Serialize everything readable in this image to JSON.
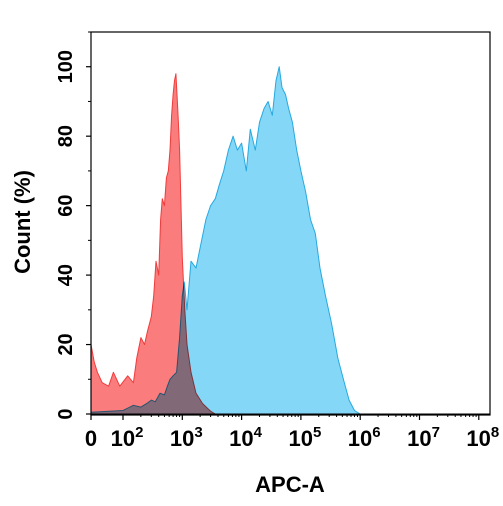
{
  "chart_data": {
    "type": "area",
    "title": "",
    "xlabel": "APC-A",
    "ylabel": "Count (%)",
    "x_scale": "biexponential",
    "xlim": [
      0,
      100000000
    ],
    "ylim": [
      0,
      110
    ],
    "y_ticks": [
      "0",
      "20",
      "40",
      "60",
      "80",
      "100"
    ],
    "x_ticks": [
      {
        "base": "0",
        "exp": ""
      },
      {
        "base": "10",
        "exp": "2"
      },
      {
        "base": "10",
        "exp": "3"
      },
      {
        "base": "10",
        "exp": "4"
      },
      {
        "base": "10",
        "exp": "5"
      },
      {
        "base": "10",
        "exp": "6"
      },
      {
        "base": "10",
        "exp": "7"
      },
      {
        "base": "10",
        "exp": "8"
      }
    ],
    "grid": false,
    "legend": "none",
    "series": [
      {
        "color": "#f03c3c",
        "fill": "#fa6e6e",
        "points": [
          [
            0,
            20
          ],
          [
            10,
            15
          ],
          [
            20,
            12
          ],
          [
            35,
            9
          ],
          [
            55,
            8
          ],
          [
            70,
            12
          ],
          [
            90,
            8
          ],
          [
            120,
            11
          ],
          [
            150,
            9
          ],
          [
            170,
            16
          ],
          [
            200,
            22
          ],
          [
            230,
            20
          ],
          [
            260,
            24
          ],
          [
            300,
            28
          ],
          [
            330,
            34
          ],
          [
            360,
            44
          ],
          [
            400,
            40
          ],
          [
            430,
            56
          ],
          [
            460,
            62
          ],
          [
            500,
            60
          ],
          [
            540,
            68
          ],
          [
            580,
            70
          ],
          [
            620,
            76
          ],
          [
            660,
            86
          ],
          [
            700,
            92
          ],
          [
            740,
            96
          ],
          [
            780,
            98
          ],
          [
            820,
            91
          ],
          [
            860,
            84
          ],
          [
            900,
            76
          ],
          [
            950,
            60
          ],
          [
            1000,
            45
          ],
          [
            1100,
            30
          ],
          [
            1200,
            20
          ],
          [
            1400,
            12
          ],
          [
            1700,
            6
          ],
          [
            2200,
            3
          ],
          [
            3000,
            0.8
          ],
          [
            3600,
            0
          ]
        ]
      },
      {
        "color": "#26a9e0",
        "fill": "#6ed0f5",
        "points": [
          [
            0,
            0.5
          ],
          [
            100,
            1
          ],
          [
            150,
            2.5
          ],
          [
            200,
            2
          ],
          [
            250,
            3
          ],
          [
            300,
            4
          ],
          [
            350,
            3.5
          ],
          [
            420,
            6
          ],
          [
            500,
            5.5
          ],
          [
            560,
            8
          ],
          [
            620,
            10
          ],
          [
            700,
            11
          ],
          [
            800,
            12
          ],
          [
            900,
            22
          ],
          [
            1000,
            34
          ],
          [
            1080,
            38
          ],
          [
            1200,
            30
          ],
          [
            1400,
            44
          ],
          [
            1700,
            42
          ],
          [
            2000,
            48
          ],
          [
            2500,
            56
          ],
          [
            3000,
            60
          ],
          [
            3600,
            62
          ],
          [
            4200,
            66
          ],
          [
            5000,
            70
          ],
          [
            6000,
            76
          ],
          [
            7200,
            80
          ],
          [
            8500,
            76
          ],
          [
            10000,
            78
          ],
          [
            12000,
            70
          ],
          [
            14000,
            82
          ],
          [
            17000,
            76
          ],
          [
            20000,
            84
          ],
          [
            24000,
            88
          ],
          [
            28000,
            90
          ],
          [
            33000,
            86
          ],
          [
            38000,
            96
          ],
          [
            43000,
            100
          ],
          [
            48000,
            94
          ],
          [
            55000,
            92
          ],
          [
            62000,
            88
          ],
          [
            72000,
            84
          ],
          [
            85000,
            76
          ],
          [
            100000,
            70
          ],
          [
            120000,
            64
          ],
          [
            145000,
            56
          ],
          [
            175000,
            52
          ],
          [
            210000,
            42
          ],
          [
            260000,
            34
          ],
          [
            330000,
            26
          ],
          [
            420000,
            16
          ],
          [
            520000,
            10
          ],
          [
            650000,
            4
          ],
          [
            800000,
            1
          ],
          [
            1000000,
            0
          ]
        ]
      }
    ]
  }
}
